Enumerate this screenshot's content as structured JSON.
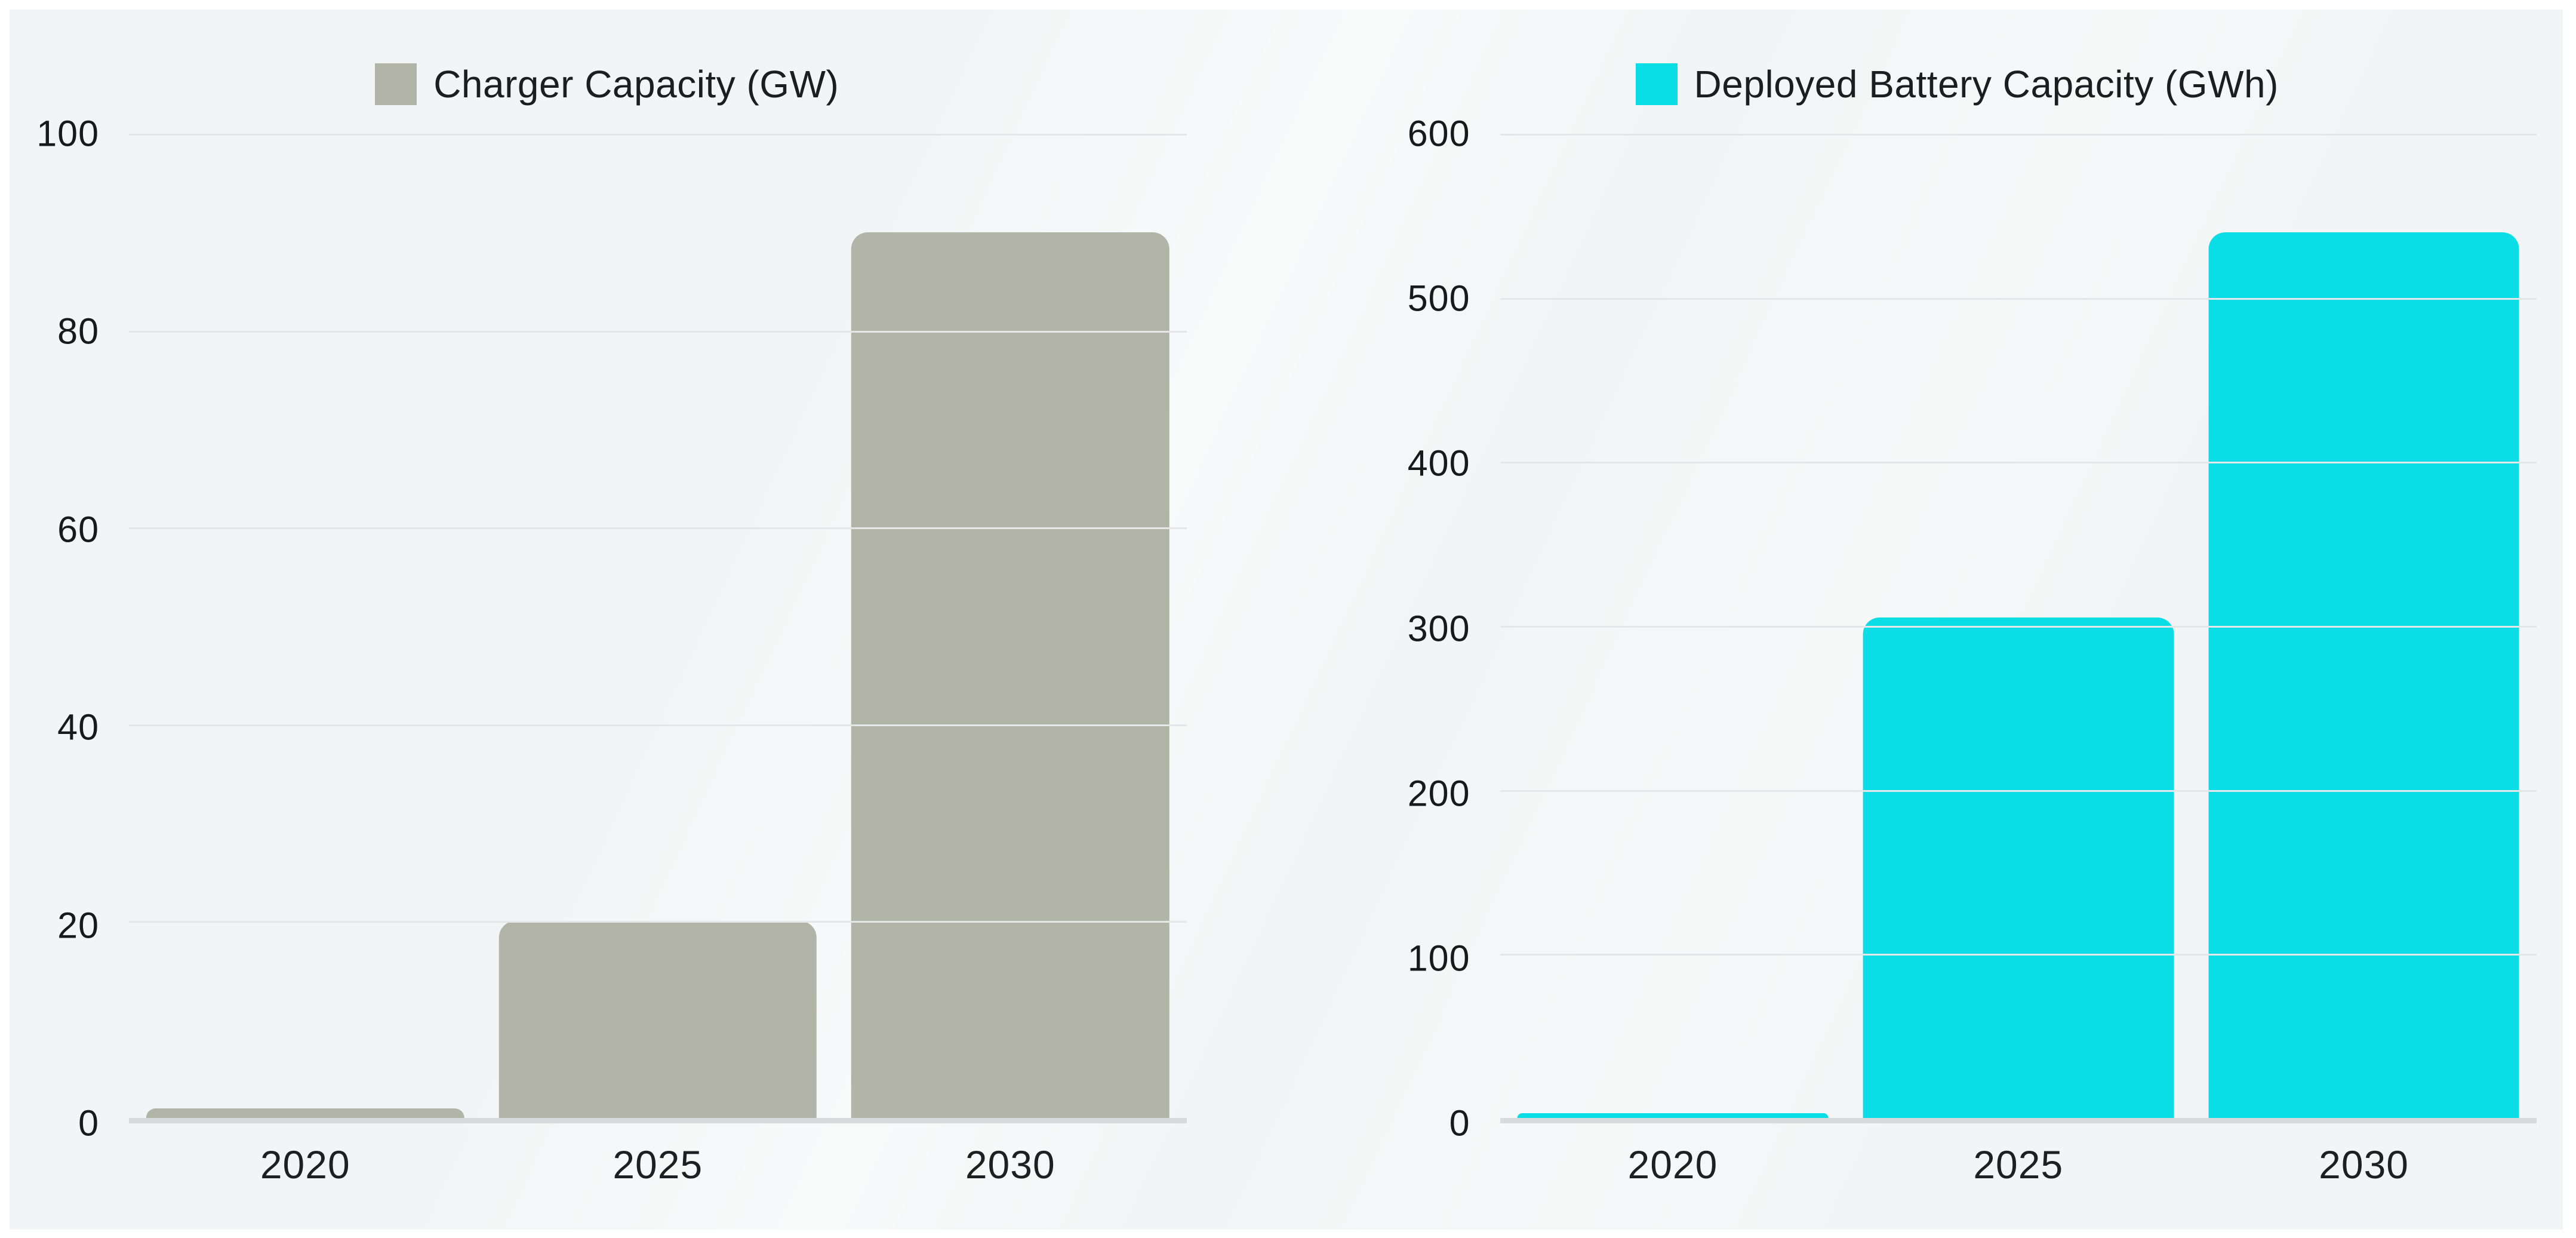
{
  "page": {
    "colors": {
      "page_background": "#ffffff",
      "panel_background": "#f2f4f5",
      "gridline": "#e4e7e8",
      "baseline": "#d8dbdb",
      "tick_text": "#17191c",
      "charger_bar": "#b2b4a8",
      "battery_bar": "#0bdde7"
    }
  },
  "chart_data": [
    {
      "type": "bar",
      "legend": "Charger Capacity (GW)",
      "legend_position": "top-center",
      "bar_color": "#b2b4a8",
      "categories": [
        "2020",
        "2025",
        "2030"
      ],
      "values": [
        1,
        20,
        90
      ],
      "ylim": [
        0,
        100
      ],
      "yticks": [
        0,
        20,
        40,
        60,
        80,
        100
      ],
      "grid": true
    },
    {
      "type": "bar",
      "legend": "Deployed Battery Capacity (GWh)",
      "legend_position": "top-center",
      "bar_color": "#0bdde7",
      "categories": [
        "2020",
        "2025",
        "2030"
      ],
      "values": [
        3,
        305,
        540
      ],
      "ylim": [
        0,
        600
      ],
      "yticks": [
        0,
        100,
        200,
        300,
        400,
        500,
        600
      ],
      "grid": true
    }
  ]
}
